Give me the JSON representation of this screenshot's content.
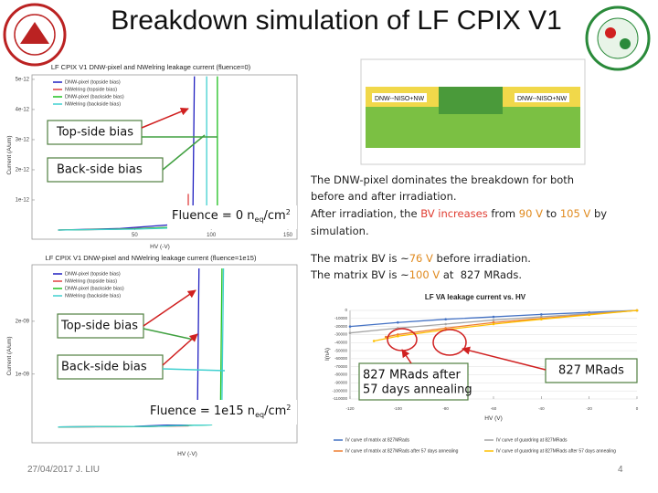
{
  "slide": {
    "title": "Breakdown simulation of LF CPIX V1",
    "footer_date": "27/04/2017 J. LIU",
    "page_number": "4",
    "callouts": [
      "Top-side bias",
      "Back-side bias",
      "Top-side bias",
      "Back-side bias"
    ],
    "fluence_labels": [
      {
        "main": "Fluence = 0 n",
        "sub": "eq",
        "unit": "/cm",
        "sup": "2"
      },
      {
        "main": "Fluence = 1e15 n",
        "sub": "eq",
        "unit": "/cm",
        "sup": "2"
      }
    ],
    "annotations": [
      "827 MRads after",
      "57 days annealing",
      "827 MRads"
    ],
    "cross_section_labels": [
      "DNW--NISO+NW",
      "DNW--NISO+NW"
    ],
    "text_box": [
      [
        {
          "text": "The DNW-pixel dominates the breakdown for both"
        }
      ],
      [
        {
          "text": "before and after irradiation."
        }
      ],
      [
        {
          "text": "After irradiation, the "
        },
        {
          "text": "BV increases",
          "color": "#e03c31"
        },
        {
          "text": " from "
        },
        {
          "text": "90 V",
          "color": "#e08a1e"
        },
        {
          "text": " to "
        },
        {
          "text": "105 V",
          "color": "#e08a1e"
        },
        {
          "text": " by"
        }
      ],
      [
        {
          "text": "simulation."
        }
      ],
      [
        {
          "text": "The matrix BV is ~"
        },
        {
          "text": "76 V",
          "color": "#e08a1e"
        },
        {
          "text": " before irradiation."
        }
      ],
      [
        {
          "text": "The matrix BV is ~"
        },
        {
          "text": "100 V",
          "color": "#e08a1e"
        },
        {
          "text": " at  827 MRads."
        }
      ]
    ]
  },
  "chart_data": [
    {
      "type": "line",
      "title": "LF CPIX V1 DNW-pixel and NWelring leakage current (fluence=0)",
      "x_label": "HV (-V)",
      "y_label": "Current (A/um)",
      "xlim": [
        -17,
        150
      ],
      "ylim": [
        0,
        5.15e-12
      ],
      "xticks": [
        50,
        100,
        150
      ],
      "yticks": [
        1e-12,
        2e-12,
        3e-12,
        4e-12,
        5e-12
      ],
      "grid": false,
      "series": [
        {
          "name": "DNW-pixel (topside bias)",
          "color": "#2020c0",
          "x": [
            0,
            40,
            80,
            88,
            89
          ],
          "values": [
            0,
            5e-14,
            2e-13,
            5e-13,
            5.1e-12
          ]
        },
        {
          "name": "NWelring (topside bias)",
          "color": "#e04040",
          "x": [
            0,
            40,
            80,
            85,
            85
          ],
          "values": [
            0,
            3e-14,
            1e-13,
            3e-13,
            1.2e-12
          ]
        },
        {
          "name": "DNW-pixel (backside bias)",
          "color": "#20c020",
          "x": [
            0,
            50,
            100,
            104,
            104
          ],
          "values": [
            0,
            4e-14,
            1.5e-13,
            5e-13,
            5.1e-12
          ]
        },
        {
          "name": "NWelring (backside bias)",
          "color": "#40d0d0",
          "x": [
            0,
            50,
            95,
            97,
            97
          ],
          "values": [
            0,
            3e-14,
            1e-13,
            5e-13,
            5.1e-12
          ]
        }
      ]
    },
    {
      "type": "line",
      "title": "LF CPIX V1 DNW-pixel and NWelring leakage current (fluence=1e15)",
      "x_label": "HV (-V)",
      "y_label": "Current (A/um)",
      "xlim": [
        -17,
        150
      ],
      "ylim": [
        -3e-10,
        3.07e-09
      ],
      "yticks": [
        {
          "value": 1e-09,
          "label": "1e-09"
        },
        {
          "value": 2e-09,
          "label": "2e-09"
        }
      ],
      "grid": false,
      "series": [
        {
          "name": "DNW-pixel (topside bias)",
          "color": "#2020c0",
          "x": [
            0,
            50,
            85,
            91,
            92
          ],
          "values": [
            0,
            1e-11,
            5e-11,
            3e-10,
            3e-09
          ]
        },
        {
          "name": "NWelring (topside bias)",
          "color": "#e04040",
          "x": [
            0,
            50,
            85,
            90
          ],
          "values": [
            0,
            5e-12,
            2e-11,
            1e-10
          ]
        },
        {
          "name": "DNW-pixel (backside bias)",
          "color": "#20c020",
          "x": [
            0,
            60,
            100,
            106,
            107
          ],
          "values": [
            0,
            1e-11,
            4e-11,
            2e-10,
            3e-09
          ]
        },
        {
          "name": "NWelring (backside bias)",
          "color": "#40d0d0",
          "x": [
            0,
            60,
            100,
            107,
            108
          ],
          "values": [
            0,
            1e-11,
            4e-11,
            5e-10,
            3e-09
          ]
        }
      ]
    },
    {
      "type": "line",
      "title": "LF VA leakage current vs. HV",
      "x_label": "HV (V)",
      "y_label": "I(nA)",
      "xlim": [
        -120,
        0
      ],
      "ylim": [
        -110000,
        0
      ],
      "xticks": [
        -120,
        -100,
        -80,
        -60,
        -40,
        -20,
        0
      ],
      "yticks": [
        0,
        -10000,
        -20000,
        -30000,
        -40000,
        -50000,
        -60000,
        -70000,
        -80000,
        -90000,
        -100000,
        -110000
      ],
      "grid": true,
      "markers": true,
      "series": [
        {
          "name": "IV curve of matrix at 827MRads",
          "color": "#4472c4",
          "x": [
            -120,
            -100,
            -80,
            -60,
            -40,
            -20,
            0
          ],
          "values": [
            -20000,
            -15000,
            -11000,
            -8000,
            -5000,
            -2500,
            0
          ]
        },
        {
          "name": "IV curve of guardring at 827MRads",
          "color": "#a5a5a5",
          "x": [
            -120,
            -100,
            -80,
            -60,
            -40,
            -20,
            0
          ],
          "values": [
            -28000,
            -22000,
            -17000,
            -12000,
            -8000,
            -4000,
            0
          ]
        },
        {
          "name": "IV curve of matrix at 827MRads after 57 days annealing",
          "color": "#ed7d31",
          "x": [
            -105,
            -100,
            -80,
            -60,
            -40,
            -20,
            0
          ],
          "values": [
            -33000,
            -30000,
            -22000,
            -15000,
            -10000,
            -5000,
            0
          ]
        },
        {
          "name": "IV curve of guardring at 827MRads after 57 days annealing",
          "color": "#ffc000",
          "x": [
            -110,
            -100,
            -80,
            -60,
            -40,
            -20,
            0
          ],
          "values": [
            -38000,
            -32000,
            -24000,
            -17000,
            -11000,
            -5500,
            0
          ]
        }
      ]
    }
  ]
}
